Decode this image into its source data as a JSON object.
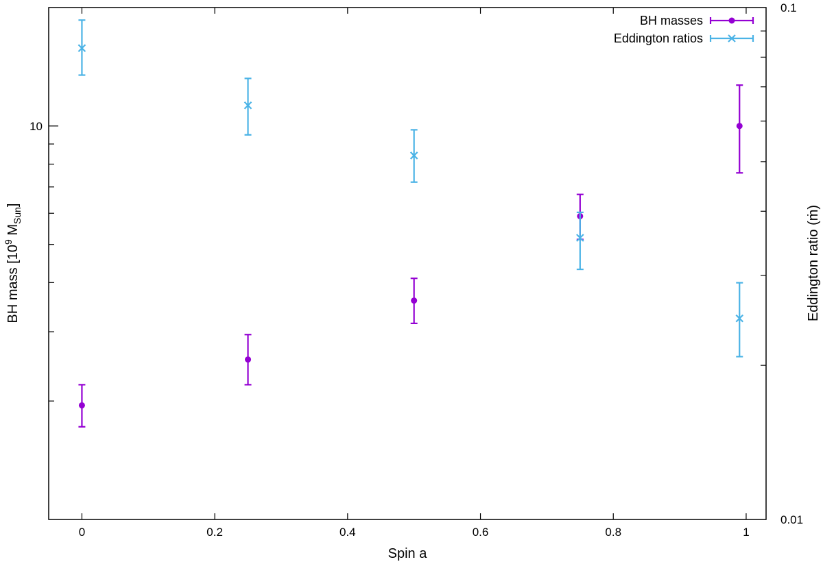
{
  "chart_data": {
    "type": "scatter",
    "xlabel": "Spin a",
    "ylabel_left": {
      "main": "BH mass [10",
      "sup": "9",
      "mid": " M",
      "sub": "Sun",
      "end": "]"
    },
    "ylabel_right": "Eddington ratio (ṁ)",
    "xlim": [
      -0.05,
      1.03
    ],
    "ylim_left": [
      1,
      20
    ],
    "ylim_right": [
      0.01,
      0.1
    ],
    "y_scale": "log",
    "x_ticks": [
      "0",
      "0.2",
      "0.4",
      "0.6",
      "0.8",
      "1"
    ],
    "x_tick_values": [
      0,
      0.2,
      0.4,
      0.6,
      0.8,
      1
    ],
    "y_left_labeled_ticks": [
      {
        "value": 10,
        "label": "10"
      }
    ],
    "y_right_labeled_ticks": [
      {
        "value": 0.01,
        "label": "0.01"
      },
      {
        "value": 0.1,
        "label": "0.1"
      }
    ],
    "grid": false,
    "legend_position": "top-right",
    "series": [
      {
        "name": "BH masses",
        "axis": "left",
        "marker": "circle",
        "color": "#9400d3",
        "points": [
          {
            "x": 0.0,
            "y": 1.95,
            "ylow": 1.72,
            "yhigh": 2.2
          },
          {
            "x": 0.25,
            "y": 2.55,
            "ylow": 2.2,
            "yhigh": 2.95
          },
          {
            "x": 0.5,
            "y": 3.6,
            "ylow": 3.15,
            "yhigh": 4.1
          },
          {
            "x": 0.75,
            "y": 5.9,
            "ylow": 5.15,
            "yhigh": 6.7
          },
          {
            "x": 0.99,
            "y": 10.0,
            "ylow": 7.6,
            "yhigh": 12.7
          }
        ]
      },
      {
        "name": "Eddington ratios",
        "axis": "right",
        "marker": "cross",
        "color": "#4bb3e6",
        "points": [
          {
            "x": 0.0,
            "y": 0.0833,
            "ylow": 0.0738,
            "yhigh": 0.0945
          },
          {
            "x": 0.25,
            "y": 0.0644,
            "ylow": 0.0564,
            "yhigh": 0.0727
          },
          {
            "x": 0.5,
            "y": 0.0514,
            "ylow": 0.0456,
            "yhigh": 0.0577
          },
          {
            "x": 0.75,
            "y": 0.0355,
            "ylow": 0.0308,
            "yhigh": 0.0398
          },
          {
            "x": 0.99,
            "y": 0.0247,
            "ylow": 0.0208,
            "yhigh": 0.029
          }
        ]
      }
    ]
  }
}
